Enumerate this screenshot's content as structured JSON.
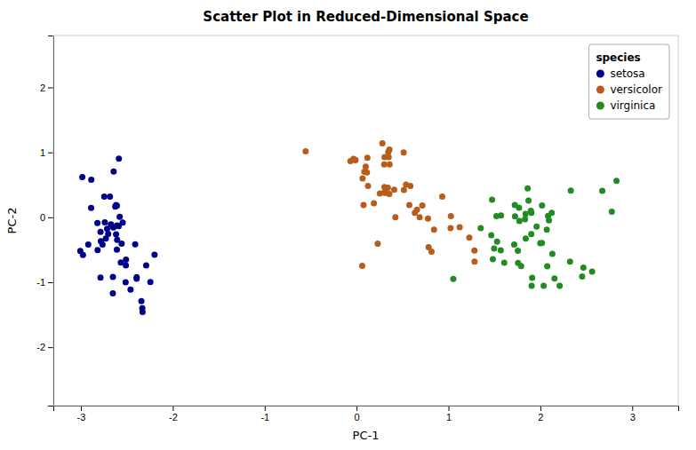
{
  "chart_data": {
    "type": "scatter",
    "title": "Scatter Plot in Reduced-Dimensional Space",
    "x_label": "PC-1",
    "y_label": "PC-2",
    "legend_title": "species",
    "legend": "upper right",
    "grid": false,
    "xlim": [
      -3.3,
      3.5
    ],
    "ylim": [
      -2.9,
      2.8
    ],
    "xticks": [
      -3,
      -2,
      -1,
      0,
      1,
      2,
      3
    ],
    "yticks": [
      -2,
      -1,
      0,
      1,
      2
    ],
    "series": [
      {
        "name": "setosa",
        "color": "#00008B",
        "x": [
          -2.684126389388171,
          -2.7150169716232986,
          -2.888717114073862,
          -2.7459682571514477,
          -2.7285343765397982,
          -2.289740673878664,
          -2.8201457048936986,
          -2.626010943564289,
          -2.886895095861501,
          -2.6725019424657,
          -2.5093741736777195,
          -2.6166629897989817,
          -2.7866503505834253,
          -2.977561534862478,
          -2.3929404065024924,
          -2.329054706070379,
          -2.6516840680225067,
          -2.6436693093744545,
          -2.1985791793893434,
          -2.5864822494936064,
          -2.4093408810764245,
          -2.5781316965498156,
          -2.9849706083946943,
          -2.3936568804985368,
          -2.5566601697313844,
          -2.6526842199476706,
          -2.5133607394468207,
          -2.6072395703126157,
          -2.5884440468640983,
          -2.783104474202678,
          -2.7395568558040795,
          -2.5451897012839804,
          -2.3316264937773137,
          -2.2438562892600893,
          -2.6725019424657,
          -2.510896065200741,
          -2.764701534890437,
          -2.6173498940948656,
          -2.919877398766502,
          -2.608568836576282,
          -2.818282400620505,
          -2.7032563419695266,
          -3.006506862765905,
          -2.4596782756200284,
          -2.5658849698068815,
          -2.647401709954537,
          -2.6085688365763007,
          -2.7869601855099475,
          -2.605875261745955,
          -2.341898454462694
        ],
        "values": [
          0.31918613844509075,
          -0.17700122787252587,
          0.14467471492782222,
          0.3178094149427218,
          -0.3258527716082312,
          -0.7413067498636455,
          -0.08912846070532678,
          0.16568428498993856,
          0.5780586885972474,
          -0.11129480506992988,
          -0.6516764765085383,
          0.18881727645093546,
          -0.22372826948024785,
          -0.5787964982541987,
          -0.9217474720695613,
          -1.4580878140490388,
          -0.9183823839817462,
          0.7053267622688565,
          -0.5746649337069893,
          0.903551741642798,
          -0.4157490116073408,
          0.006845399488875978,
          0.6208538099451565,
          -0.9459255946620085,
          -0.40381649835413874,
          -1.1720393497427852,
          -1.0005530416218158,
          -0.12433832739786882,
          -0.13499547131568695,
          -0.3690791360921978,
          -0.07843218434665619,
          -0.08026613905682843,
          -1.4012107745879379,
          -0.9959093093756117,
          -0.11129480506992988,
          -0.7408085116698866,
          -0.42046765726393753,
          -0.26316050085990406,
          -0.4206976541383405,
          0.17820668046440433,
          -0.505742726869365,
          -0.25552001651949,
          -0.5190285200393059,
          -1.1135740047049496,
          -0.6949547866038785,
          -0.1575265250539346,
          -0.49609413453628015,
          -0.9290831893213558,
          -0.3482095065555218,
          -1.2898767481823974
        ]
      },
      {
        "name": "versicolor",
        "color": "#B85C1A",
        "x": [
          1.2837311034360575,
          0.9319946218944573,
          1.2828519099889988,
          0.5740534524012095,
          1.1218785820901507,
          0.6859389259289093,
          1.0263893879082284,
          0.2297743249989461,
          1.022774892670855,
          0.3012618040571399,
          0.7155927753905698,
          0.42237258521671284,
          0.7766048813745028,
          1.2264018434327284,
          0.35970059870823357,
          0.7836498234397088,
          0.6337912019620977,
          0.5379733521082437,
          0.5851022050087648,
          0.07564459765249286,
          0.3559397012491499,
          0.5151617695791463,
          0.3128877682820143,
          0.3569568580614052,
          0.6569553680199386,
          0.8154890064892638,
          0.5121619403543226,
          0.18832977434958736,
          0.4094040869126017,
          0.34534447785684685,
          -0.03428418285421777,
          0.11780421063085426,
          -0.01329756073614975,
          0.11202879736975695,
          0.3028065038416793,
          0.08476890867499753,
          0.30050936601027367,
          0.8427139432929783,
          0.30428428940174307,
          0.06120063186168448,
          0.12413547278186655,
          0.09919673834434477,
          0.34046291296264763,
          -0.06720862540680082,
          0.06492618756741957,
          -0.01329756073614975,
          0.2530085249165979,
          -0.5543556905219085,
          0.28073855832990735,
          0.3491451561659765
        ],
        "values": [
          -0.6837082538789655,
          0.31912829872028065,
          -0.5098706625791888,
          0.18784012028183028,
          -0.15189591684977116,
          0.0018940834042636037,
          0.01695978009729608,
          -0.4040516655019789,
          -0.1659888516651929,
          0.38139948543455804,
          0.18263994127282432,
          0.0026453424528547504,
          -0.01975603439677317,
          -0.31143698491558397,
          0.8134093578817413,
          -0.4600406944434618,
          0.07001561827671397,
          0.5044029226427893,
          0.4837748985742716,
          0.19087381399756423,
          0.35870748543040065,
          0.42044011397905395,
          0.37714706063316583,
          1.044813640786571,
          0.11669699289068994,
          -0.5271940905696568,
          1.0006455897218842,
          0.21773780665009218,
          0.42476476688049686,
          1.0044889640028976,
          0.9011095893258756,
          0.9168699898519397,
          0.88208649714099,
          0.6898879540148039,
          0.46483219440543666,
          0.7001832665834614,
          0.8148064027034883,
          -0.1907847710234965,
          0.9285003547117978,
          -0.7467889282455975,
          0.4831225993726578,
          0.7800046406090833,
          0.45468609440226976,
          0.8672576432718906,
          0.5975975034989046,
          0.88208649714099,
          0.3662562052153935,
          1.016012697408399,
          1.1408050888897447,
          0.9285003547117978
        ]
      },
      {
        "name": "virginica",
        "color": "#228B22",
        "x": [
          1.9104528745386073,
          1.4655803929834752,
          2.562362516222737,
          1.7148038577524605,
          1.9049604618073253,
          2.4684697524266084,
          1.052553735861494,
          2.0356074890869076,
          1.7569567699660786,
          2.1302694777949043,
          1.7905875649381782,
          1.9987047424832558,
          1.5713898432148448,
          1.3505208427561828,
          1.5218984124490802,
          1.8405990044673892,
          1.838619716038064,
          2.0935695527614646,
          2.322547752702241,
          1.4826960726048548,
          2.0745117451296506,
          1.4965609892419267,
          2.673609437148266,
          2.0695289234396386,
          2.017038049289558,
          1.6066866477613944,
          1.8326977765199524,
          1.7682481019660654,
          1.8705960050041095,
          1.5685268095558424,
          1.5287592087397384,
          1.7244285742920475,
          1.7218726851448507,
          2.3310898000296802,
          1.8617519726780696,
          2.0178009694978063,
          1.9009827696697086,
          1.4742588773327039,
          1.7717898186975665,
          1.9026862601413619,
          2.0834049403093253,
          2.1234064440359024,
          2.7768090440148256,
          1.9588063779601417,
          2.4545614516263705,
          2.8282682600208764,
          2.209657694013172,
          2.1534882553396995,
          1.8959397577879065,
          1.7547028540547644
        ],
        "values": [
          -0.9329640919895307,
          -0.2738765617890776,
          -0.8368259748694394,
          -0.4207387625985174,
          -1.0536616984476965,
          -0.7745064895897747,
          -0.9490621028416985,
          -1.0536616984476965,
          -0.7022285453024649,
          -0.5630097745003396,
          -0.7522163791697003,
          -0.39699889397516536,
          0.026906049070395704,
          -0.16698041668395214,
          0.019256578665476805,
          -0.3280987048519706,
          0.052820685038618295,
          -0.04696706155668754,
          -0.6813440895434847,
          -0.6451591893419975,
          -0.7534116920041268,
          -0.4813082001866399,
          0.4082891792497434,
          -0.18892382949879327,
          -0.3953419831618895,
          -0.6984038064474476,
          -0.030060965393199437,
          0.1498555044516817,
          0.2583278649434818,
          -0.5065920059988803,
          -0.37408782399266993,
          0.013490491127408603,
          0.18977027316636283,
          0.4112455680408826,
          0.4440046022803543,
          0.1808843637419956,
          -0.2590064945340609,
          0.2725434148661208,
          -0.05684218862773773,
          0.07038741655247283,
          0.023012516785285774,
          0.07038741655247283,
          0.08785875636680476,
          -0.14218832551024746,
          -0.9099059499680028,
          0.5618386218455254,
          -1.0536616984476965,
          -0.9429337419624154,
          0.10048001344779744,
          -0.5162266100440388
        ]
      }
    ]
  }
}
